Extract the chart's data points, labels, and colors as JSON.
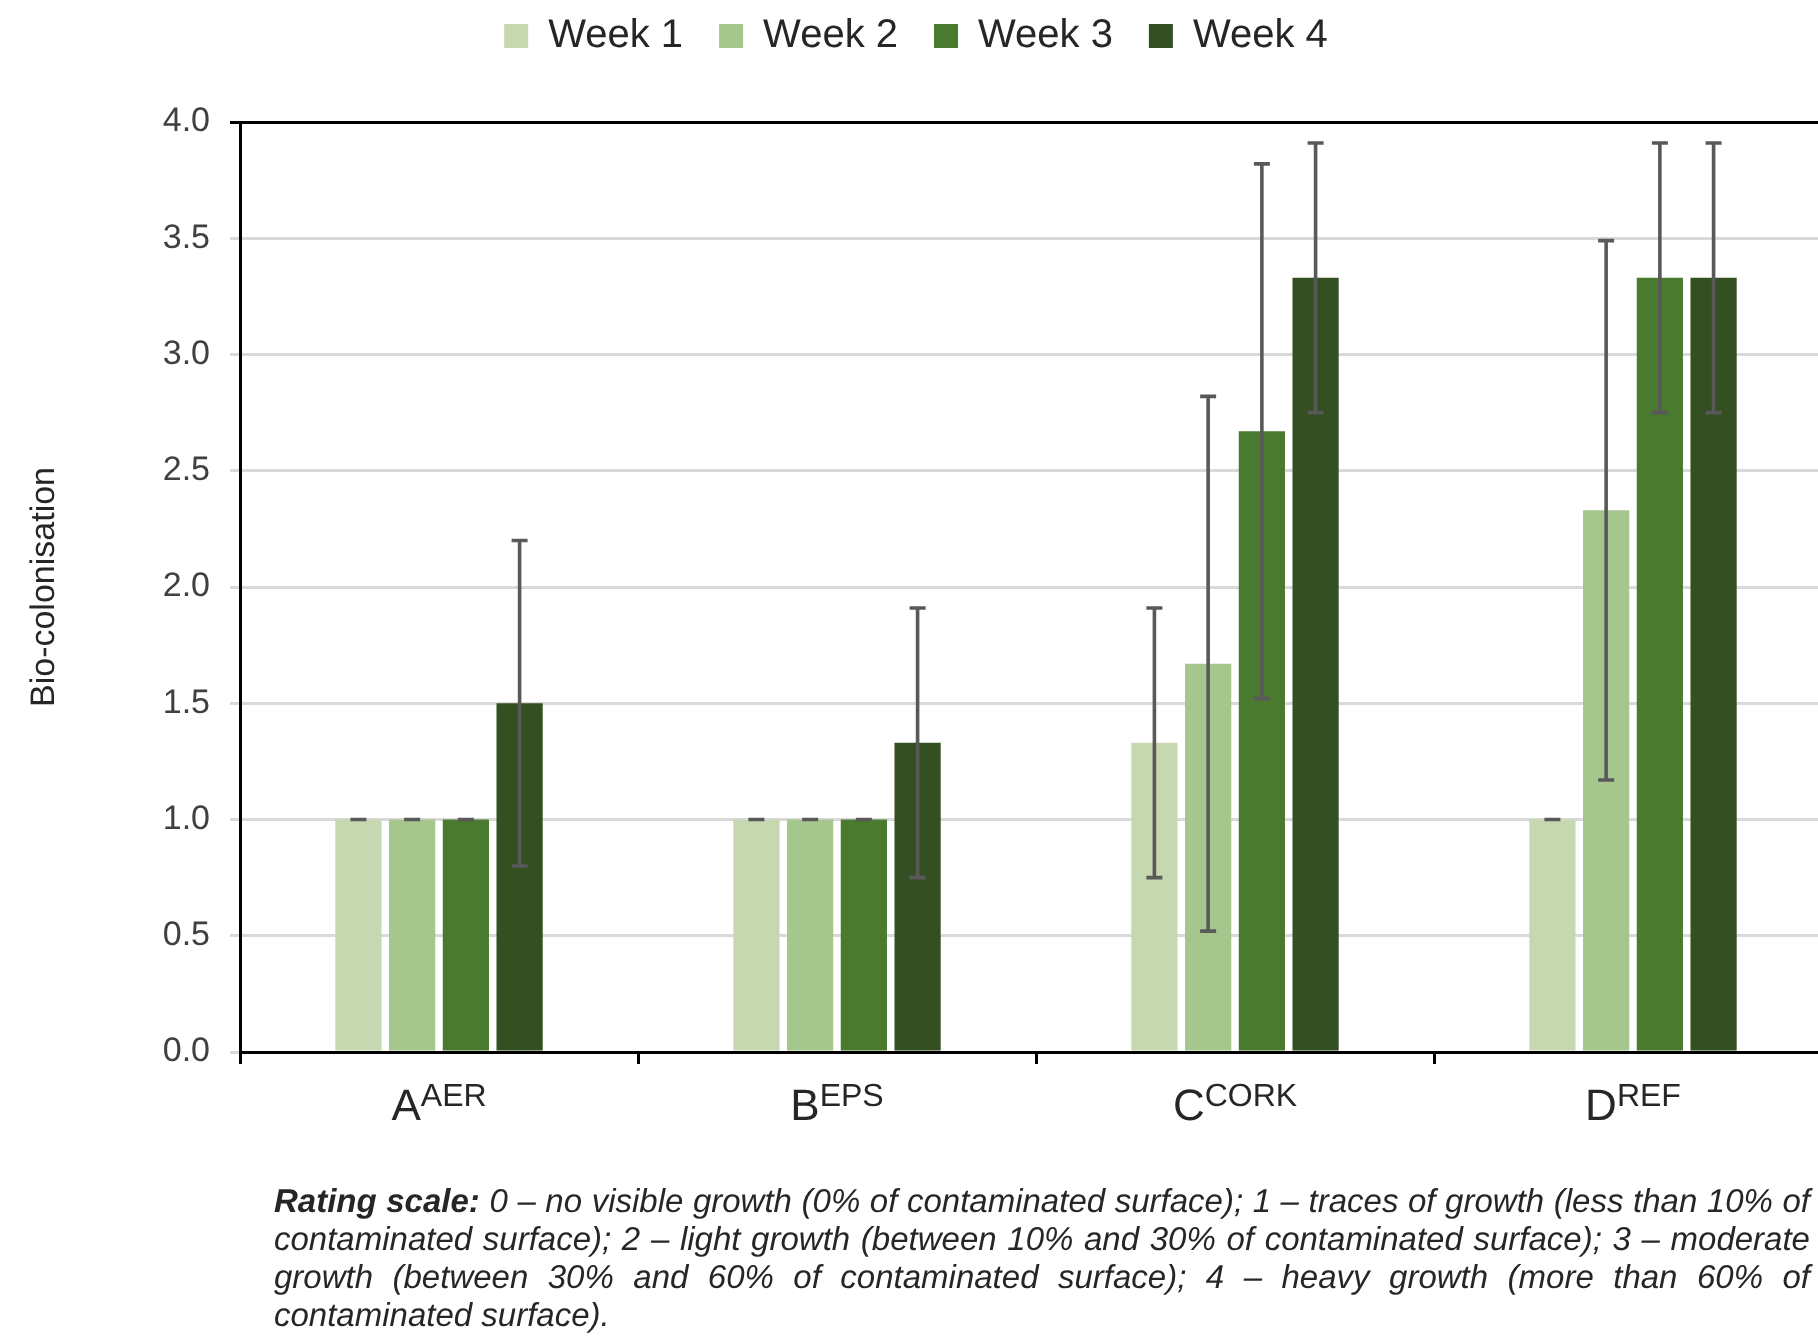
{
  "chart_data": {
    "type": "bar",
    "categories": [
      "A$^{AER}$",
      "B$^{EPS}$",
      "C$^{CORK}$",
      "D$^{REF}$"
    ],
    "ylabel": "Bio-colonisation",
    "ylim": [
      0,
      4
    ],
    "yticks": [
      {
        "value": 0,
        "label": "0.0"
      },
      {
        "value": 0.5,
        "label": "0.5"
      },
      {
        "value": 1,
        "label": "1.0"
      },
      {
        "value": 1.5,
        "label": "1.5"
      },
      {
        "value": 2,
        "label": "2.0"
      },
      {
        "value": 2.5,
        "label": "2.5"
      },
      {
        "value": 3,
        "label": "3.0"
      },
      {
        "value": 3.5,
        "label": "3.5"
      },
      {
        "value": 4,
        "label": "4.0"
      }
    ],
    "grid": "y",
    "legend": "top",
    "series": [
      {
        "name": "Week 1",
        "color": "#c5d8b0",
        "values": [
          1,
          1,
          1.33,
          1
        ],
        "errors": [
          0,
          0,
          0.58,
          0
        ]
      },
      {
        "name": "Week 2",
        "color": "#a5c68c",
        "values": [
          1,
          1,
          1.67,
          2.33
        ],
        "errors": [
          0,
          0,
          1.15,
          1.16
        ]
      },
      {
        "name": "Week 3",
        "color": "#4a7a2e",
        "values": [
          1,
          1,
          2.67,
          3.33
        ],
        "errors": [
          0,
          0,
          1.15,
          0.58
        ]
      },
      {
        "name": "Week 4",
        "color": "#344f21",
        "values": [
          1.5,
          1.33,
          3.33,
          3.33
        ],
        "errors": [
          0.7,
          0.58,
          0.58,
          0.58
        ]
      }
    ],
    "annotations": [
      "Rating scale: 0 – no visible growth (0% of contaminated surface); 1 – traces of growth (less than 10% of contaminated surface); 2 – light growth (between 10% and 30% of contaminated surface); 3 – moderate growth (between 30% and 60% of contaminated surface); 4 – heavy growth (more than 60% of contaminated surface)."
    ]
  }
}
